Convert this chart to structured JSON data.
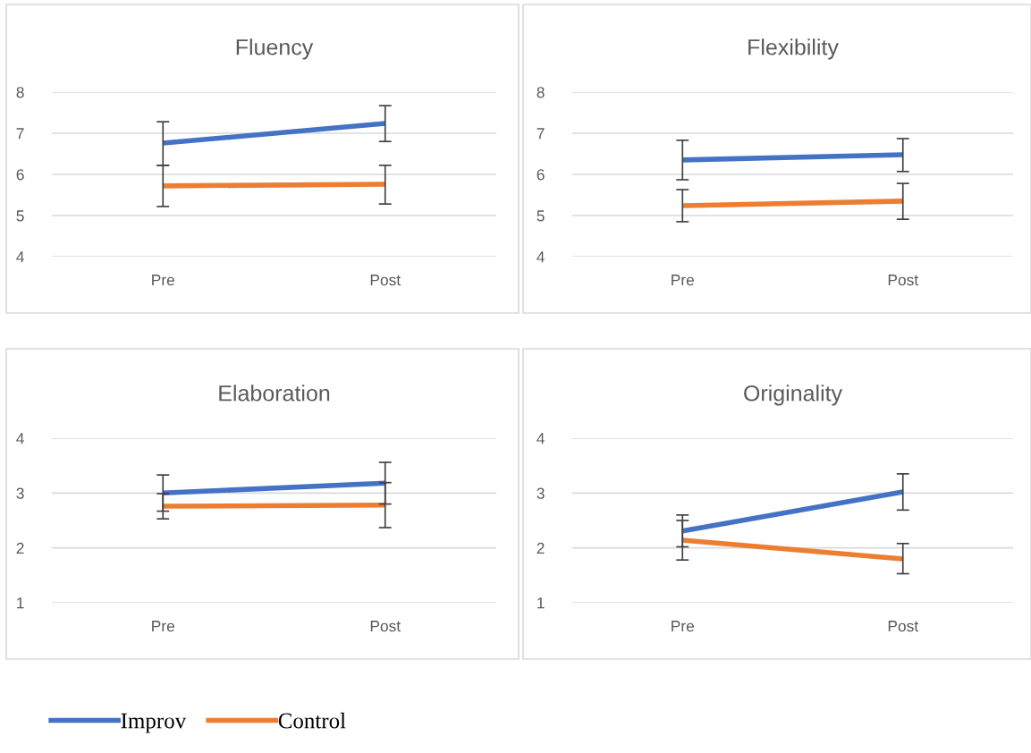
{
  "chart_data": [
    {
      "type": "line",
      "title": "Fluency",
      "categories": [
        "Pre",
        "Post"
      ],
      "ylim": [
        4,
        8
      ],
      "yticks": [
        4,
        5,
        6,
        7,
        8
      ],
      "grid": "y",
      "legend": "bottom",
      "series": [
        {
          "name": "Improv",
          "color": "#4472c4",
          "values": [
            6.76,
            7.24
          ],
          "errors": [
            [
              6.22,
              7.28
            ],
            [
              6.8,
              7.67
            ]
          ]
        },
        {
          "name": "Control",
          "color": "#ed7d31",
          "values": [
            5.72,
            5.76
          ],
          "errors": [
            [
              5.22,
              6.22
            ],
            [
              5.28,
              6.22
            ]
          ]
        }
      ]
    },
    {
      "type": "line",
      "title": "Flexibility",
      "categories": [
        "Pre",
        "Post"
      ],
      "ylim": [
        4,
        8
      ],
      "yticks": [
        4,
        5,
        6,
        7,
        8
      ],
      "grid": "y",
      "series": [
        {
          "color": "#4472c4",
          "values": [
            6.35,
            6.48
          ],
          "errors": [
            [
              5.87,
              6.83
            ],
            [
              6.07,
              6.87
            ]
          ]
        },
        {
          "color": "#ed7d31",
          "values": [
            5.24,
            5.35
          ],
          "errors": [
            [
              4.85,
              5.63
            ],
            [
              4.91,
              5.78
            ]
          ]
        }
      ]
    },
    {
      "type": "line",
      "title": "Elaboration",
      "categories": [
        "Pre",
        "Post"
      ],
      "ylim": [
        1,
        4
      ],
      "yticks": [
        1,
        2,
        3,
        4
      ],
      "grid": "y",
      "series": [
        {
          "color": "#4472c4",
          "values": [
            3.0,
            3.18
          ],
          "errors": [
            [
              2.67,
              3.33
            ],
            [
              2.8,
              3.56
            ]
          ]
        },
        {
          "color": "#ed7d31",
          "values": [
            2.76,
            2.78
          ],
          "errors": [
            [
              2.53,
              2.99
            ],
            [
              2.37,
              3.19
            ]
          ]
        }
      ]
    },
    {
      "type": "line",
      "title": "Originality",
      "categories": [
        "Pre",
        "Post"
      ],
      "ylim": [
        1,
        4
      ],
      "yticks": [
        1,
        2,
        3,
        4
      ],
      "grid": "y",
      "series": [
        {
          "color": "#4472c4",
          "values": [
            2.31,
            3.02
          ],
          "errors": [
            [
              2.02,
              2.6
            ],
            [
              2.69,
              3.35
            ]
          ]
        },
        {
          "color": "#ed7d31",
          "values": [
            2.14,
            1.8
          ],
          "errors": [
            [
              1.78,
              2.5
            ],
            [
              1.53,
              2.08
            ]
          ]
        }
      ]
    }
  ]
}
